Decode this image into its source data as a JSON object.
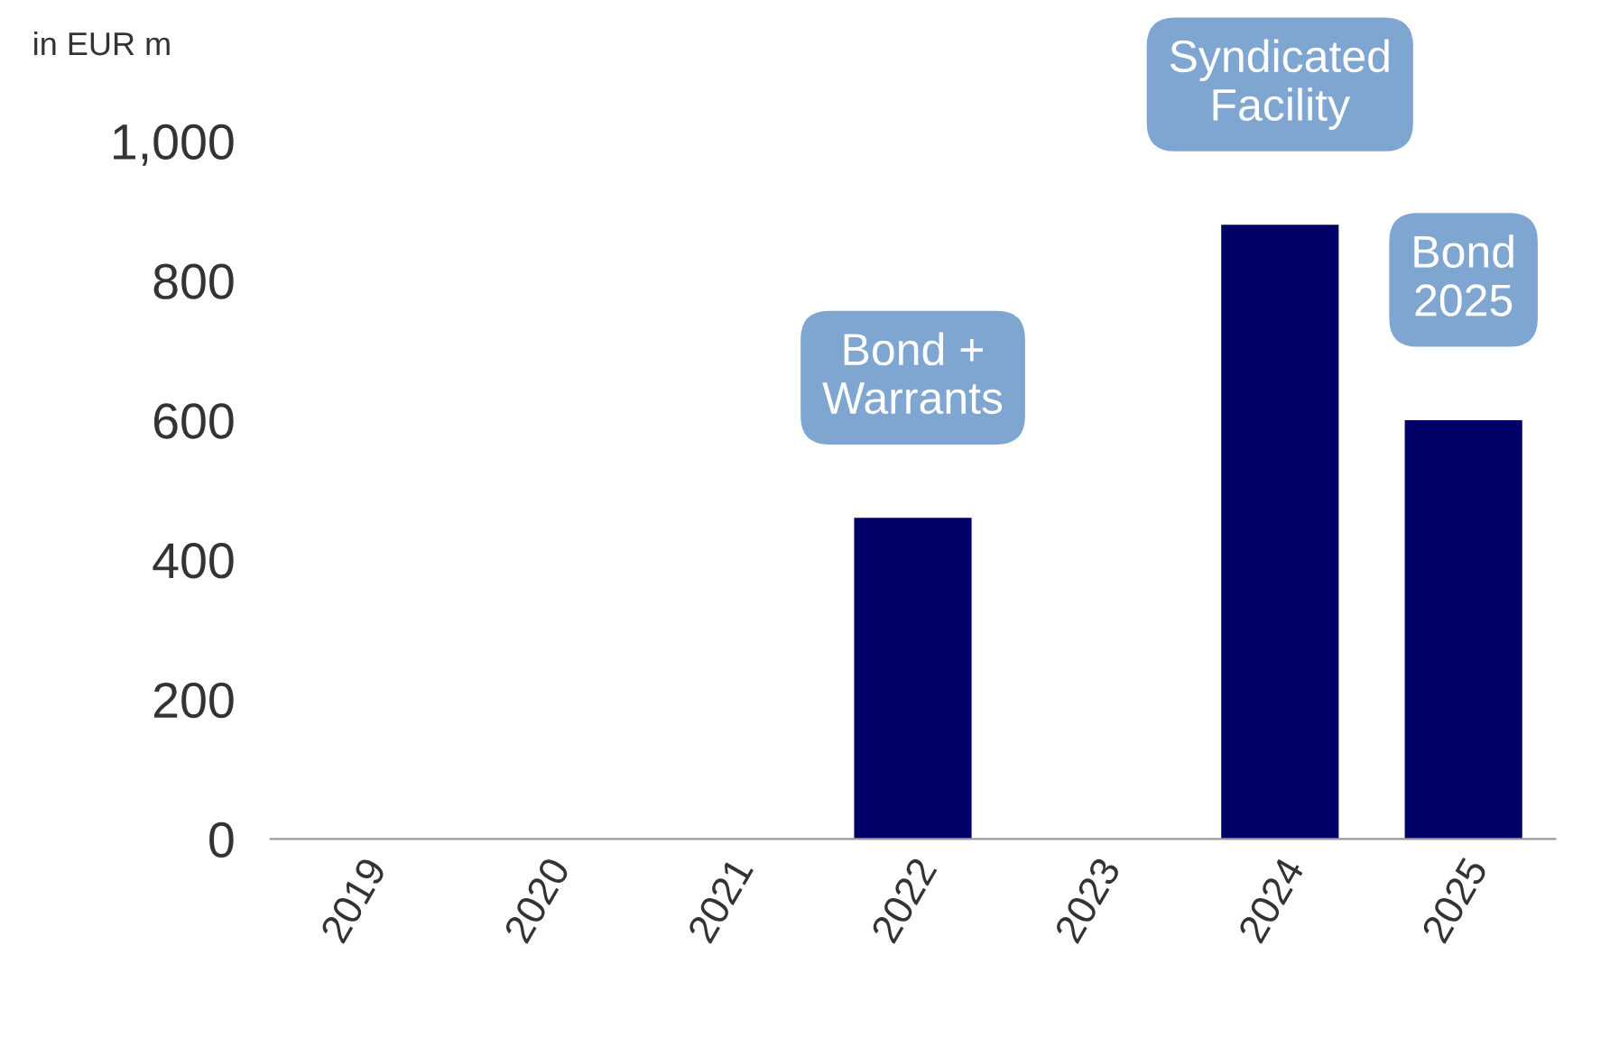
{
  "chart_data": {
    "type": "bar",
    "ylabel": "in EUR m",
    "categories": [
      "2019",
      "2020",
      "2021",
      "2022",
      "2023",
      "2024",
      "2025"
    ],
    "values": [
      0,
      0,
      0,
      460,
      0,
      880,
      600
    ],
    "color": "#000066",
    "ylim": [
      0,
      1000
    ],
    "yticks": [
      0,
      200,
      400,
      600,
      800,
      {
        "value": 1000,
        "label": "1,000"
      }
    ],
    "grid": false,
    "legend": false,
    "annotations": [
      {
        "text": "Bond +\nWarrants",
        "x": "2022",
        "y": 460
      },
      {
        "text": "Syndicated\nFacility",
        "x": "2024",
        "y": 880
      },
      {
        "text": "Bond\n2025",
        "x": "2025",
        "y": 600
      }
    ]
  }
}
